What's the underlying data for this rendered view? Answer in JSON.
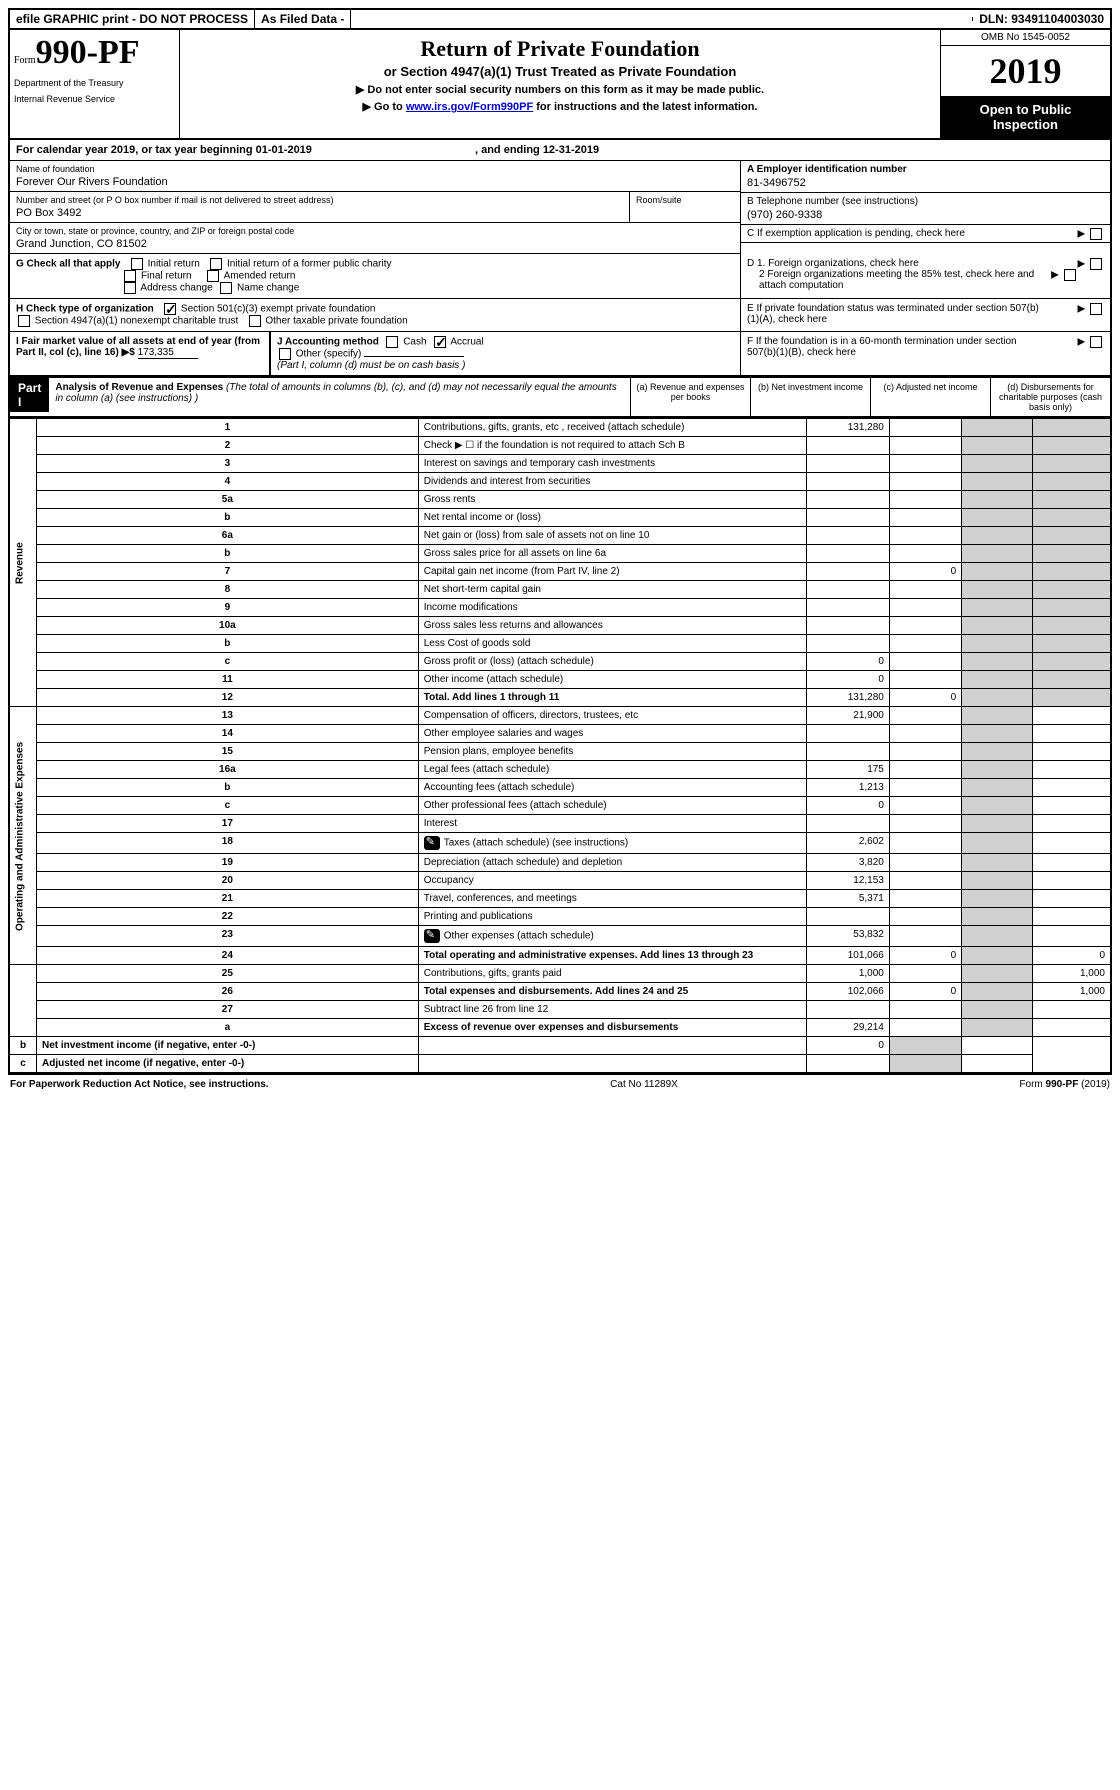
{
  "topbar": {
    "efile": "efile GRAPHIC print - DO NOT PROCESS",
    "asfiled": "As Filed Data -",
    "dln": "DLN: 93491104003030"
  },
  "header": {
    "form_prefix": "Form",
    "form_number": "990-PF",
    "dept1": "Department of the Treasury",
    "dept2": "Internal Revenue Service",
    "title": "Return of Private Foundation",
    "subtitle": "or Section 4947(a)(1) Trust Treated as Private Foundation",
    "note1": "▶ Do not enter social security numbers on this form as it may be made public.",
    "note2_pre": "▶ Go to ",
    "note2_link": "www.irs.gov/Form990PF",
    "note2_post": " for instructions and the latest information.",
    "omb": "OMB No 1545-0052",
    "year": "2019",
    "open": "Open to Public Inspection"
  },
  "cal_year": {
    "text": "For calendar year 2019, or tax year beginning 01-01-2019",
    "ending": ", and ending 12-31-2019"
  },
  "foundation": {
    "name_label": "Name of foundation",
    "name": "Forever Our Rivers Foundation",
    "addr_label": "Number and street (or P O  box number if mail is not delivered to street address)",
    "room_label": "Room/suite",
    "addr": "PO Box 3492",
    "city_label": "City or town, state or province, country, and ZIP or foreign postal code",
    "city": "Grand Junction, CO  81502"
  },
  "right_info": {
    "a_label": "A Employer identification number",
    "a_val": "81-3496752",
    "b_label": "B Telephone number (see instructions)",
    "b_val": "(970) 260-9338",
    "c_label": "C If exemption application is pending, check here",
    "d1": "D 1. Foreign organizations, check here",
    "d2": "2 Foreign organizations meeting the 85% test, check here and attach computation",
    "e": "E  If private foundation status was terminated under section 507(b)(1)(A), check here",
    "f": "F  If the foundation is in a 60-month termination under section 507(b)(1)(B), check here"
  },
  "section_g": {
    "label": "G Check all that apply",
    "opts": [
      "Initial return",
      "Initial return of a former public charity",
      "Final return",
      "Amended return",
      "Address change",
      "Name change"
    ]
  },
  "section_h": {
    "label": "H Check type of organization",
    "opt1": "Section 501(c)(3) exempt private foundation",
    "opt2": "Section 4947(a)(1) nonexempt charitable trust",
    "opt3": "Other taxable private foundation"
  },
  "section_i": {
    "label": "I Fair market value of all assets at end of year (from Part II, col  (c), line 16) ▶$",
    "val": "173,335"
  },
  "section_j": {
    "label": "J Accounting method",
    "cash": "Cash",
    "accrual": "Accrual",
    "other": "Other (specify)",
    "note": "(Part I, column (d) must be on cash basis )"
  },
  "part1": {
    "badge": "Part I",
    "title": "Analysis of Revenue and Expenses",
    "title_note": "(The total of amounts in columns (b), (c), and (d) may not necessarily equal the amounts in column (a) (see instructions) )",
    "col_a": "(a) Revenue and expenses per books",
    "col_b": "(b) Net investment income",
    "col_c": "(c) Adjusted net income",
    "col_d": "(d) Disbursements for charitable purposes (cash basis only)"
  },
  "sections": {
    "revenue": "Revenue",
    "expenses": "Operating and Administrative Expenses"
  },
  "rows": [
    {
      "n": "1",
      "d": "Contributions, gifts, grants, etc , received (attach schedule)",
      "a": "131,280"
    },
    {
      "n": "2",
      "d": "Check ▶ ☐ if the foundation is not required to attach Sch B"
    },
    {
      "n": "3",
      "d": "Interest on savings and temporary cash investments"
    },
    {
      "n": "4",
      "d": "Dividends and interest from securities"
    },
    {
      "n": "5a",
      "d": "Gross rents"
    },
    {
      "n": "b",
      "d": "Net rental income or (loss)"
    },
    {
      "n": "6a",
      "d": "Net gain or (loss) from sale of assets not on line 10"
    },
    {
      "n": "b",
      "d": "Gross sales price for all assets on line 6a"
    },
    {
      "n": "7",
      "d": "Capital gain net income (from Part IV, line 2)",
      "b": "0"
    },
    {
      "n": "8",
      "d": "Net short-term capital gain"
    },
    {
      "n": "9",
      "d": "Income modifications"
    },
    {
      "n": "10a",
      "d": "Gross sales less returns and allowances"
    },
    {
      "n": "b",
      "d": "Less  Cost of goods sold"
    },
    {
      "n": "c",
      "d": "Gross profit or (loss) (attach schedule)",
      "a": "0"
    },
    {
      "n": "11",
      "d": "Other income (attach schedule)",
      "a": "0"
    },
    {
      "n": "12",
      "d": "Total. Add lines 1 through 11",
      "a": "131,280",
      "b": "0",
      "bold": true
    },
    {
      "n": "13",
      "d": "Compensation of officers, directors, trustees, etc",
      "a": "21,900"
    },
    {
      "n": "14",
      "d": "Other employee salaries and wages"
    },
    {
      "n": "15",
      "d": "Pension plans, employee benefits"
    },
    {
      "n": "16a",
      "d": "Legal fees (attach schedule)",
      "a": "175"
    },
    {
      "n": "b",
      "d": "Accounting fees (attach schedule)",
      "a": "1,213"
    },
    {
      "n": "c",
      "d": "Other professional fees (attach schedule)",
      "a": "0"
    },
    {
      "n": "17",
      "d": "Interest"
    },
    {
      "n": "18",
      "d": "Taxes (attach schedule) (see instructions)",
      "a": "2,602",
      "icon": true
    },
    {
      "n": "19",
      "d": "Depreciation (attach schedule) and depletion",
      "a": "3,820"
    },
    {
      "n": "20",
      "d": "Occupancy",
      "a": "12,153"
    },
    {
      "n": "21",
      "d": "Travel, conferences, and meetings",
      "a": "5,371"
    },
    {
      "n": "22",
      "d": "Printing and publications"
    },
    {
      "n": "23",
      "d": "Other expenses (attach schedule)",
      "a": "53,832",
      "icon": true
    },
    {
      "n": "24",
      "d": "Total operating and administrative expenses. Add lines 13 through 23",
      "a": "101,066",
      "b": "0",
      "dd": "0",
      "bold": true
    },
    {
      "n": "25",
      "d": "Contributions, gifts, grants paid",
      "a": "1,000",
      "dd": "1,000"
    },
    {
      "n": "26",
      "d": "Total expenses and disbursements. Add lines 24 and 25",
      "a": "102,066",
      "b": "0",
      "dd": "1,000",
      "bold": true
    },
    {
      "n": "27",
      "d": "Subtract line 26 from line 12"
    },
    {
      "n": "a",
      "d": "Excess of revenue over expenses and disbursements",
      "a": "29,214",
      "bold": true
    },
    {
      "n": "b",
      "d": "Net investment income (if negative, enter -0-)",
      "b": "0",
      "bold": true
    },
    {
      "n": "c",
      "d": "Adjusted net income (if negative, enter -0-)",
      "bold": true
    }
  ],
  "footer": {
    "left": "For Paperwork Reduction Act Notice, see instructions.",
    "mid": "Cat No  11289X",
    "right": "Form 990-PF (2019)"
  }
}
